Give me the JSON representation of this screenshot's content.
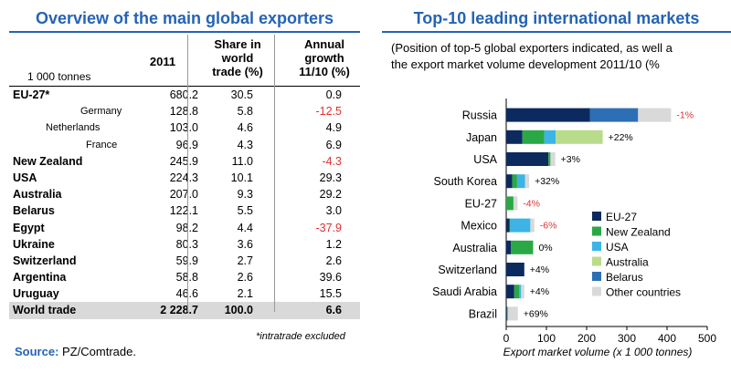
{
  "left_panel": {
    "title": "Overview of the main global exporters",
    "units": "1 000 tonnes",
    "columns": [
      "2011",
      "Share in world trade (%)",
      "Annual growth 11/10 (%)"
    ],
    "column_lines": {
      "share": [
        "Share in",
        "world",
        "trade (%)"
      ],
      "growth": [
        "Annual",
        "growth",
        "11/10 (%)"
      ]
    },
    "rows": [
      {
        "name": "EU-27*",
        "v2011": "680.2",
        "share": "30.5",
        "growth": "0.9",
        "sub": false
      },
      {
        "name": "Germany",
        "v2011": "128.8",
        "share": "5.8",
        "growth": "-12.5",
        "sub": true
      },
      {
        "name": "Netherlands",
        "v2011": "103.0",
        "share": "4.6",
        "growth": "4.9",
        "sub": true
      },
      {
        "name": "France",
        "v2011": "96.9",
        "share": "4.3",
        "growth": "6.9",
        "sub": true
      },
      {
        "name": "New Zealand",
        "v2011": "245.9",
        "share": "11.0",
        "growth": "-4.3",
        "sub": false
      },
      {
        "name": "USA",
        "v2011": "224.3",
        "share": "10.1",
        "growth": "29.3",
        "sub": false
      },
      {
        "name": "Australia",
        "v2011": "207.0",
        "share": "9.3",
        "growth": "29.2",
        "sub": false
      },
      {
        "name": "Belarus",
        "v2011": "122.1",
        "share": "5.5",
        "growth": "3.0",
        "sub": false
      },
      {
        "name": "Egypt",
        "v2011": "98.2",
        "share": "4.4",
        "growth": "-37.9",
        "sub": false
      },
      {
        "name": "Ukraine",
        "v2011": "80.3",
        "share": "3.6",
        "growth": "1.2",
        "sub": false
      },
      {
        "name": "Switzerland",
        "v2011": "59.9",
        "share": "2.7",
        "growth": "2.6",
        "sub": false
      },
      {
        "name": "Argentina",
        "v2011": "58.8",
        "share": "2.6",
        "growth": "39.6",
        "sub": false
      },
      {
        "name": "Uruguay",
        "v2011": "46.6",
        "share": "2.1",
        "growth": "15.5",
        "sub": false
      }
    ],
    "total": {
      "name": "World trade",
      "v2011": "2 228.7",
      "share": "100.0",
      "growth": "6.6"
    },
    "footnote": "*intratrade excluded",
    "source_label": "Source:",
    "source_text": "PZ/Comtrade."
  },
  "chart_data": {
    "type": "bar",
    "orientation": "horizontal",
    "stacked": true,
    "title": "Top-10 leading international markets",
    "subtitle_lines": [
      "(Position of top-5 global exporters indicated, as well a",
      "the export market volume development  2011/10 (%"
    ],
    "xlabel": "Export market volume (x 1 000 tonnes)",
    "xlim": [
      0,
      500
    ],
    "xticks": [
      0,
      100,
      200,
      300,
      400,
      500
    ],
    "categories": [
      "Russia",
      "Japan",
      "USA",
      "South Korea",
      "EU-27",
      "Mexico",
      "Australia",
      "Switzerland",
      "Saudi Arabia",
      "Brazil"
    ],
    "series": [
      {
        "name": "EU-27",
        "color": "#0d2a5e",
        "values": [
          208,
          40,
          105,
          15,
          0,
          8,
          12,
          45,
          20,
          2
        ]
      },
      {
        "name": "New Zealand",
        "color": "#2aa845",
        "values": [
          0,
          55,
          5,
          12,
          18,
          2,
          55,
          0,
          12,
          2
        ]
      },
      {
        "name": "USA",
        "color": "#3cb4e6",
        "values": [
          0,
          28,
          0,
          20,
          0,
          50,
          0,
          0,
          5,
          0
        ]
      },
      {
        "name": "Australia",
        "color": "#b9dc8c",
        "values": [
          0,
          117,
          0,
          0,
          0,
          0,
          0,
          0,
          0,
          0
        ]
      },
      {
        "name": "Belarus",
        "color": "#2d6fb5",
        "values": [
          120,
          0,
          0,
          0,
          0,
          0,
          0,
          0,
          0,
          0
        ]
      },
      {
        "name": "Other countries",
        "color": "#d9d9d9",
        "values": [
          82,
          0,
          12,
          10,
          10,
          10,
          0,
          0,
          8,
          25
        ]
      }
    ],
    "growth_labels": [
      "-1%",
      "+22%",
      "+3%",
      "+32%",
      "-4%",
      "-6%",
      "0%",
      "+4%",
      "+4%",
      "+69%"
    ],
    "growth_negative_color": "#e03030",
    "legend_position": "bottom-right"
  }
}
